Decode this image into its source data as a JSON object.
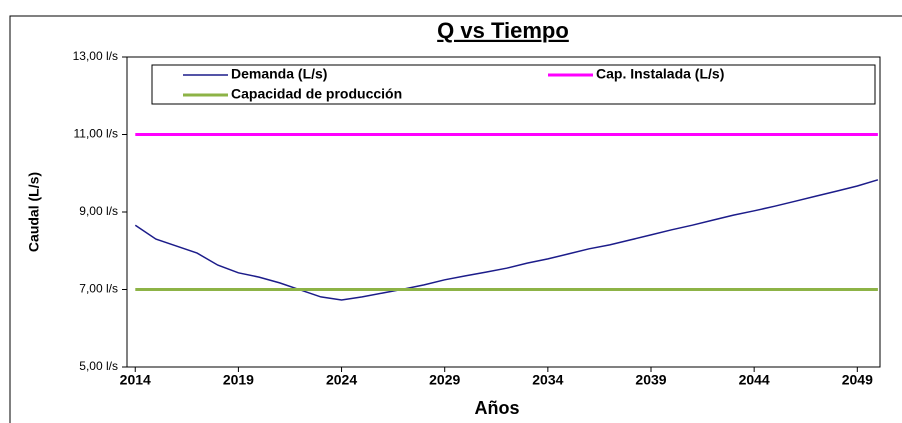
{
  "chart_data": {
    "type": "line",
    "title": "Q vs Tiempo",
    "xlabel": "Años",
    "ylabel": "Caudal (L/s)",
    "x": [
      2014,
      2015,
      2016,
      2017,
      2018,
      2019,
      2020,
      2021,
      2022,
      2023,
      2024,
      2025,
      2026,
      2027,
      2028,
      2029,
      2030,
      2031,
      2032,
      2033,
      2034,
      2035,
      2036,
      2037,
      2038,
      2039,
      2040,
      2041,
      2042,
      2043,
      2044,
      2045,
      2046,
      2047,
      2048,
      2049,
      2050
    ],
    "series": [
      {
        "name": "Demanda (L/s)",
        "color": "#1c1c8a",
        "values": [
          8.66,
          8.3,
          8.12,
          7.94,
          7.63,
          7.43,
          7.32,
          7.17,
          6.99,
          6.81,
          6.73,
          6.81,
          6.91,
          7.01,
          7.12,
          7.25,
          7.35,
          7.45,
          7.55,
          7.68,
          7.79,
          7.92,
          8.05,
          8.15,
          8.28,
          8.41,
          8.54,
          8.66,
          8.79,
          8.92,
          9.03,
          9.15,
          9.28,
          9.41,
          9.54,
          9.67,
          9.83
        ]
      },
      {
        "name": "Cap. Instalada (L/s)",
        "color": "#ff00ff",
        "values": [
          11,
          11,
          11,
          11,
          11,
          11,
          11,
          11,
          11,
          11,
          11,
          11,
          11,
          11,
          11,
          11,
          11,
          11,
          11,
          11,
          11,
          11,
          11,
          11,
          11,
          11,
          11,
          11,
          11,
          11,
          11,
          11,
          11,
          11,
          11,
          11,
          11
        ]
      },
      {
        "name": "Capacidad de producción",
        "color": "#8db346",
        "values": [
          7,
          7,
          7,
          7,
          7,
          7,
          7,
          7,
          7,
          7,
          7,
          7,
          7,
          7,
          7,
          7,
          7,
          7,
          7,
          7,
          7,
          7,
          7,
          7,
          7,
          7,
          7,
          7,
          7,
          7,
          7,
          7,
          7,
          7,
          7,
          7,
          7
        ]
      }
    ],
    "xlim": [
      2013.6,
      2050.1
    ],
    "xticks": [
      2014,
      2019,
      2024,
      2029,
      2034,
      2039,
      2044,
      2049
    ],
    "ylim": [
      5,
      13
    ],
    "yticks": [
      {
        "value": 5,
        "label": "5,00 l/s"
      },
      {
        "value": 7,
        "label": "7,00 l/s"
      },
      {
        "value": 9,
        "label": "9,00 l/s"
      },
      {
        "value": 11,
        "label": "11,00 l/s"
      },
      {
        "value": 13,
        "label": "13,00 l/s"
      }
    ],
    "grid": false
  }
}
